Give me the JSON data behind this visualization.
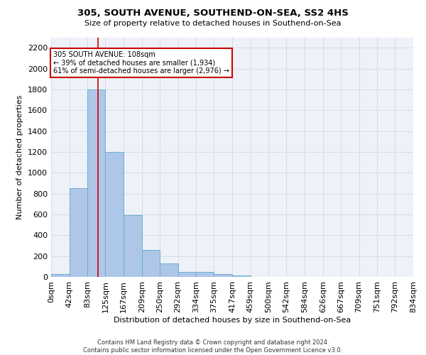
{
  "title": "305, SOUTH AVENUE, SOUTHEND-ON-SEA, SS2 4HS",
  "subtitle": "Size of property relative to detached houses in Southend-on-Sea",
  "xlabel": "Distribution of detached houses by size in Southend-on-Sea",
  "ylabel": "Number of detached properties",
  "footer_line1": "Contains HM Land Registry data © Crown copyright and database right 2024.",
  "footer_line2": "Contains public sector information licensed under the Open Government Licence v3.0.",
  "bin_edges": [
    0,
    42,
    83,
    125,
    167,
    209,
    250,
    292,
    334,
    375,
    417,
    459,
    500,
    542,
    584,
    626,
    667,
    709,
    751,
    792,
    834
  ],
  "bin_labels": [
    "0sqm",
    "42sqm",
    "83sqm",
    "125sqm",
    "167sqm",
    "209sqm",
    "250sqm",
    "292sqm",
    "334sqm",
    "375sqm",
    "417sqm",
    "459sqm",
    "500sqm",
    "542sqm",
    "584sqm",
    "626sqm",
    "667sqm",
    "709sqm",
    "751sqm",
    "792sqm",
    "834sqm"
  ],
  "bar_heights": [
    25,
    850,
    1800,
    1200,
    590,
    260,
    130,
    50,
    45,
    30,
    15,
    0,
    0,
    0,
    0,
    0,
    0,
    0,
    0,
    0
  ],
  "bar_color": "#aec6e8",
  "bar_edge_color": "#6aaed6",
  "grid_color": "#d0d8e8",
  "background_color": "#eef2f8",
  "red_line_x": 108,
  "annotation_text": "305 SOUTH AVENUE: 108sqm\n← 39% of detached houses are smaller (1,934)\n61% of semi-detached houses are larger (2,976) →",
  "annotation_box_color": "#ffffff",
  "annotation_border_color": "#cc0000",
  "ylim_max": 2300,
  "yticks": [
    0,
    200,
    400,
    600,
    800,
    1000,
    1200,
    1400,
    1600,
    1800,
    2000,
    2200
  ]
}
